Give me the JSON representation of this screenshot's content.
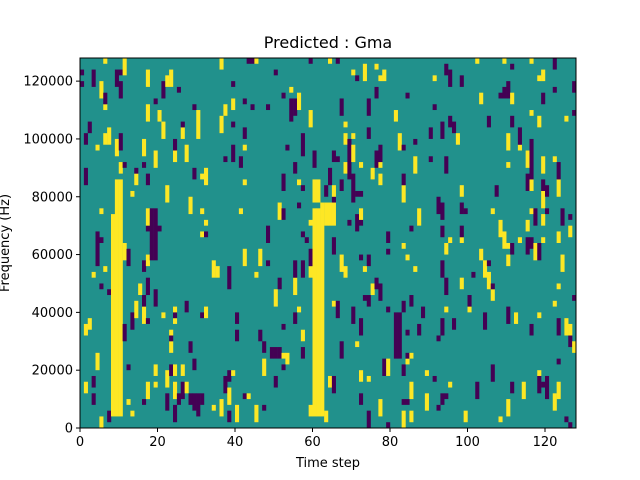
{
  "chart_data": {
    "type": "heatmap",
    "title": "Predicted : Gma",
    "xlabel": "Time step",
    "ylabel": "Frequency (Hz)",
    "xlim": [
      0,
      128
    ],
    "ylim": [
      0,
      128000
    ],
    "x_ticks": [
      0,
      20,
      40,
      60,
      80,
      100,
      120
    ],
    "y_ticks": [
      0,
      20000,
      40000,
      60000,
      80000,
      100000,
      120000
    ],
    "y_tick_labels": [
      "0",
      "20000",
      "40000",
      "60000",
      "80000",
      "100000",
      "120000"
    ],
    "grid": false,
    "colormap": "viridis",
    "colors": {
      "low": "#440154",
      "mid": "#21918c",
      "high": "#fde725"
    },
    "grid_shape": {
      "time_steps": 128,
      "frequency_bins": 64
    },
    "bin_height_hz": 2000,
    "background_level": "mid",
    "bands": [
      {
        "level": "high",
        "x_start": 8,
        "x_end": 11,
        "y_start": 4000,
        "y_end": 74000
      },
      {
        "level": "high",
        "x_start": 9,
        "x_end": 11,
        "y_start": 74000,
        "y_end": 86000
      },
      {
        "level": "high",
        "x_start": 60,
        "x_end": 63,
        "y_start": 4000,
        "y_end": 76000
      },
      {
        "level": "high",
        "x_start": 62,
        "x_end": 66,
        "y_start": 70000,
        "y_end": 78000
      },
      {
        "level": "high",
        "x_start": 60,
        "x_end": 62,
        "y_start": 78000,
        "y_end": 86000
      },
      {
        "level": "low",
        "x_start": 81,
        "x_end": 83,
        "y_start": 24000,
        "y_end": 40000
      },
      {
        "level": "low",
        "x_start": 18,
        "x_end": 20,
        "y_start": 58000,
        "y_end": 76000
      },
      {
        "level": "low",
        "x_start": 28,
        "x_end": 32,
        "y_start": 8000,
        "y_end": 12000
      },
      {
        "level": "low",
        "x_start": 49,
        "x_end": 52,
        "y_start": 24000,
        "y_end": 28000
      },
      {
        "level": "low",
        "x_start": 71,
        "x_end": 73,
        "y_start": 80000,
        "y_end": 82000
      }
    ],
    "scatter_density": 0.05,
    "scatter_seed": 12345
  }
}
